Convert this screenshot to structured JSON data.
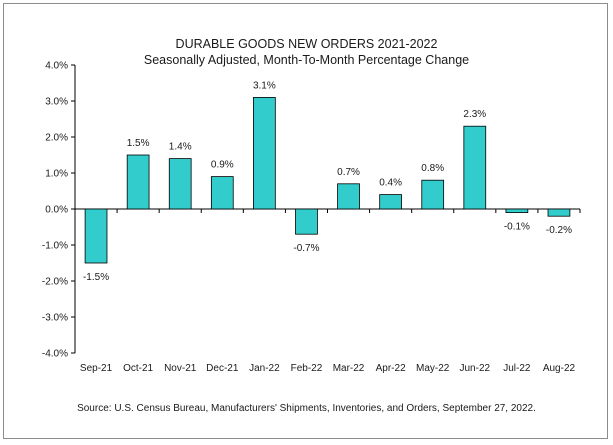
{
  "chart_data": {
    "type": "bar",
    "title": "DURABLE GOODS NEW ORDERS 2021-2022",
    "subtitle": "Seasonally Adjusted,  Month-To-Month Percentage Change",
    "xlabel": "",
    "ylabel": "",
    "ylim": [
      -4.0,
      4.0
    ],
    "ytick_step": 1.0,
    "ytick_labels": [
      "4.0%",
      "3.0%",
      "2.0%",
      "1.0%",
      "0.0%",
      "-1.0%",
      "-2.0%",
      "-3.0%",
      "-4.0%"
    ],
    "grid": false,
    "legend": "none",
    "categories": [
      "Sep-21",
      "Oct-21",
      "Nov-21",
      "Dec-21",
      "Jan-22",
      "Feb-22",
      "Mar-22",
      "Apr-22",
      "May-22",
      "Jun-22",
      "Jul-22",
      "Aug-22"
    ],
    "values": [
      -1.5,
      1.5,
      1.4,
      0.9,
      3.1,
      -0.7,
      0.7,
      0.4,
      0.8,
      2.3,
      -0.1,
      -0.2
    ],
    "value_labels": [
      "-1.5%",
      "1.5%",
      "1.4%",
      "0.9%",
      "3.1%",
      "-0.7%",
      "0.7%",
      "0.4%",
      "0.8%",
      "2.3%",
      "-0.1%",
      "-0.2%"
    ],
    "bar_color": "#33CCCC",
    "bar_edge_color": "#000000",
    "source": "Source: U.S. Census Bureau, Manufacturers' Shipments, Inventories, and Orders, September 27, 2022."
  }
}
